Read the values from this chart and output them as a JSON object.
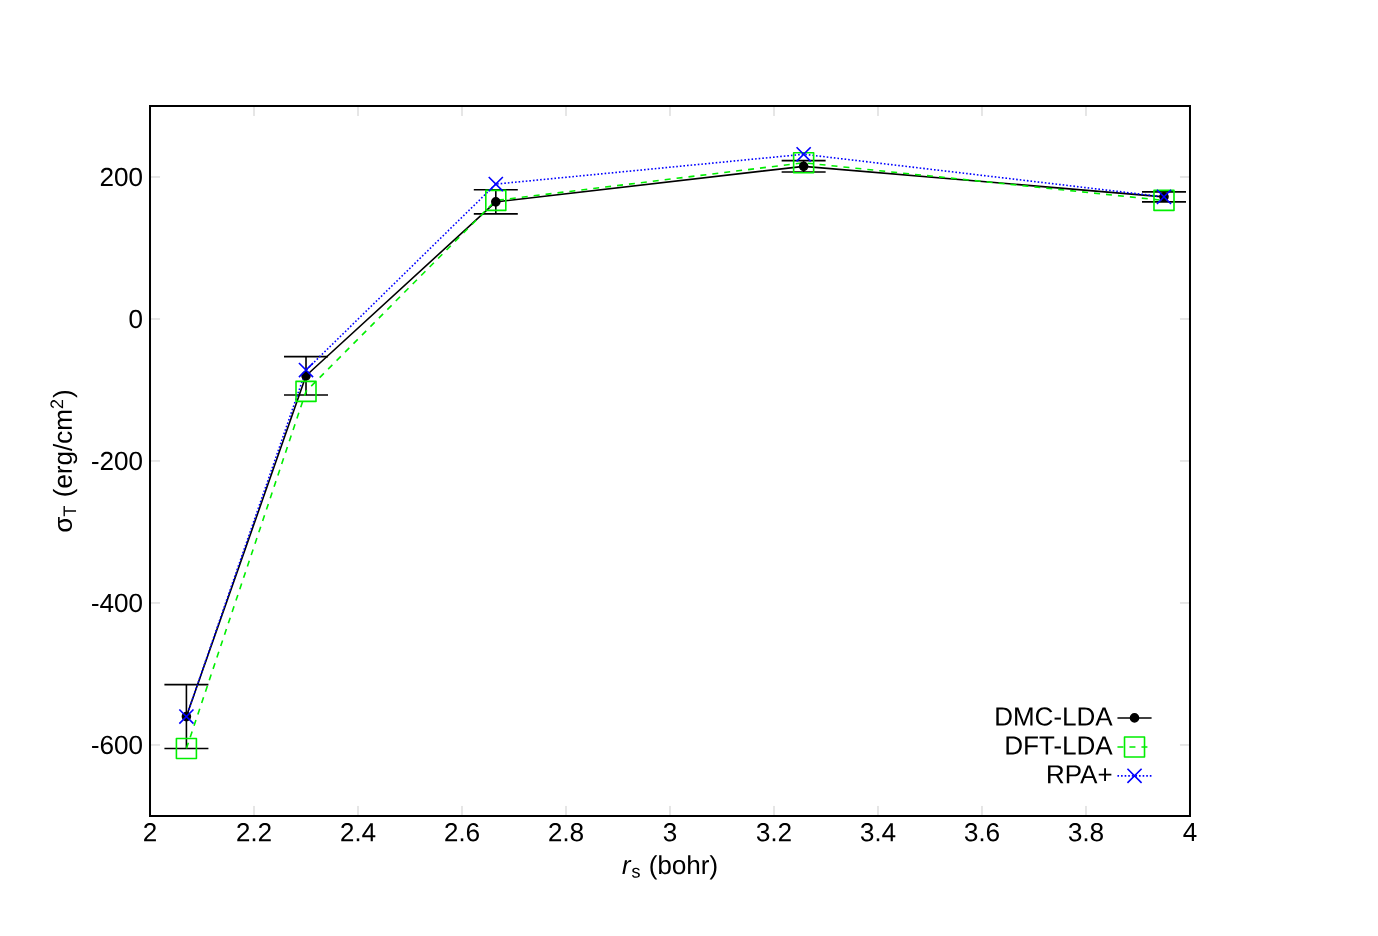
{
  "chart_data": {
    "type": "line",
    "xlabel": "*r*$_{s}$ (bohr)",
    "ylabel": "σ$_{T}$ (erg/cm$^{2}$)",
    "x": [
      2.07,
      2.3,
      2.665,
      3.257,
      3.95
    ],
    "series": [
      {
        "name": "DMC-LDA",
        "color": "#000000",
        "values": [
          -560,
          -80,
          165,
          215,
          172
        ],
        "errors": [
          45,
          27,
          17,
          8,
          7
        ],
        "marker": "circle",
        "line_style": "solid"
      },
      {
        "name": "DFT-LDA",
        "color": "#00ee00",
        "values": [
          -605,
          -102,
          167,
          220,
          167
        ],
        "marker": "square",
        "line_style": "dashed"
      },
      {
        "name": "RPA+",
        "color": "#0000ff",
        "values": [
          -560,
          -72,
          190,
          232,
          172
        ],
        "marker": "cross",
        "line_style": "dotted"
      }
    ],
    "xlim": [
      2,
      4
    ],
    "ylim": [
      -700,
      300
    ],
    "xticks": [
      2,
      2.2,
      2.4,
      2.6,
      2.8,
      3,
      3.2,
      3.4,
      3.6,
      3.8,
      4
    ],
    "yticks": [
      -600,
      -400,
      -200,
      0,
      200
    ],
    "legend": "bottom right",
    "grid": false
  }
}
